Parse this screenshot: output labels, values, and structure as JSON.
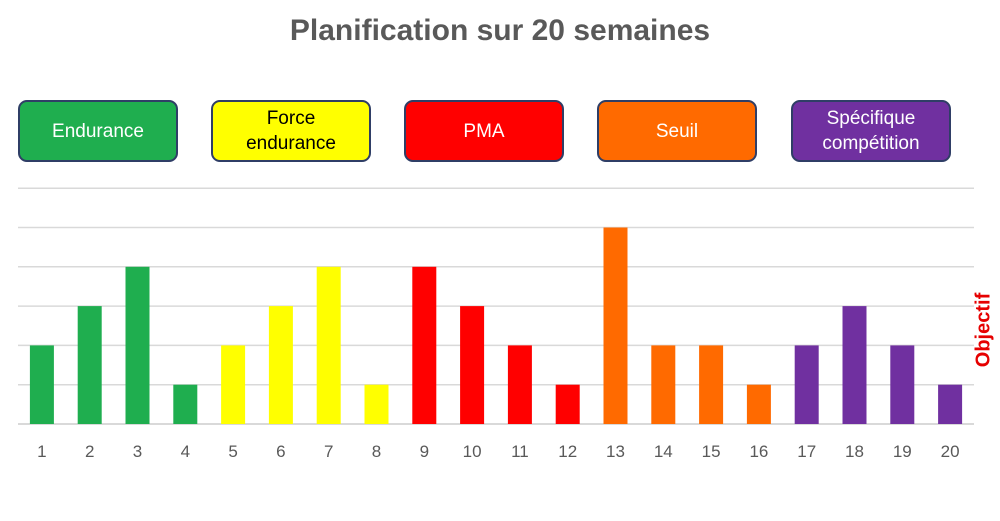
{
  "chart_data": {
    "type": "bar",
    "title": "Planification sur 20 semaines",
    "categories": [
      "1",
      "2",
      "3",
      "4",
      "5",
      "6",
      "7",
      "8",
      "9",
      "10",
      "11",
      "12",
      "13",
      "14",
      "15",
      "16",
      "17",
      "18",
      "19",
      "20"
    ],
    "values": [
      2,
      3,
      4,
      1,
      2,
      3,
      4,
      1,
      4,
      3,
      2,
      1,
      5,
      2,
      2,
      1,
      2,
      3,
      2,
      1
    ],
    "phases": [
      "endurance",
      "endurance",
      "endurance",
      "endurance",
      "force",
      "force",
      "force",
      "force",
      "pma",
      "pma",
      "pma",
      "pma",
      "seuil",
      "seuil",
      "seuil",
      "seuil",
      "specifique",
      "specifique",
      "specifique",
      "specifique"
    ],
    "ylim": [
      0,
      6
    ],
    "grid": true,
    "legend_position": "top",
    "legend": [
      {
        "key": "endurance",
        "label": "Endurance",
        "color": "#1fae4f",
        "text_color": "#ffffff"
      },
      {
        "key": "force",
        "label": "Force\nendurance",
        "color": "#ffff00",
        "text_color": "#000000"
      },
      {
        "key": "pma",
        "label": "PMA",
        "color": "#ff0000",
        "text_color": "#ffffff"
      },
      {
        "key": "seuil",
        "label": "Seuil",
        "color": "#ff6a00",
        "text_color": "#ffffff"
      },
      {
        "key": "specifique",
        "label": "Spécifique\ncompétition",
        "color": "#7030a0",
        "text_color": "#ffffff"
      }
    ],
    "annotation": "Objectif",
    "grid_color": "#d9d9d9"
  }
}
